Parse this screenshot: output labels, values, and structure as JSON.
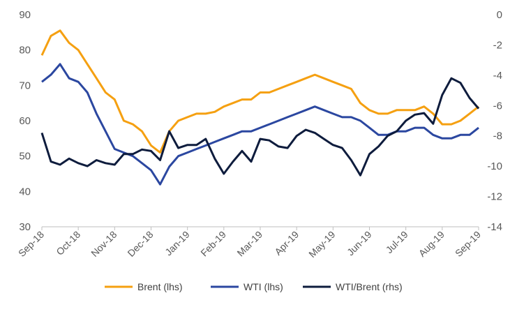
{
  "chart_data": {
    "type": "line",
    "title": "",
    "xlabel": "",
    "ylabel": "",
    "x_ticks": [
      "Sep-18",
      "Oct-18",
      "Nov-18",
      "Dec-18",
      "Jan-19",
      "Feb-19",
      "Mar-19",
      "Apr-19",
      "May-19",
      "Jun-19",
      "Jul-19",
      "Aug-19",
      "Sep-19"
    ],
    "ylim_left": [
      30,
      90
    ],
    "yticks_left": [
      "30",
      "40",
      "50",
      "60",
      "70",
      "80",
      "90"
    ],
    "ylim_right": [
      -14,
      0
    ],
    "yticks_right": [
      "-14",
      "-12",
      "-10",
      "-8",
      "-6",
      "-4",
      "-2",
      "0"
    ],
    "grid": false,
    "legend_position": "bottom",
    "series": [
      {
        "name": "Brent (lhs)",
        "axis": "left",
        "color": "#F5A011",
        "x": [
          0,
          0.25,
          0.5,
          0.75,
          1,
          1.25,
          1.5,
          1.75,
          2,
          2.25,
          2.5,
          2.75,
          3,
          3.25,
          3.5,
          3.75,
          4,
          4.25,
          4.5,
          4.75,
          5,
          5.25,
          5.5,
          5.75,
          6,
          6.25,
          6.5,
          6.75,
          7,
          7.25,
          7.5,
          7.75,
          8,
          8.25,
          8.5,
          8.75,
          9,
          9.25,
          9.5,
          9.75,
          10,
          10.25,
          10.5,
          10.75,
          11,
          11.25,
          11.5,
          11.75,
          12
        ],
        "values": [
          78.5,
          84,
          85.5,
          82,
          80,
          76,
          72,
          68,
          66,
          60,
          59,
          57,
          53,
          51,
          57,
          60,
          61,
          62,
          62,
          62.5,
          64,
          65,
          66,
          66,
          68,
          68,
          69,
          70,
          71,
          72,
          73,
          72,
          71,
          70,
          69,
          65,
          63,
          62,
          62,
          63,
          63,
          63,
          64,
          62,
          59,
          59,
          60,
          62,
          64
        ]
      },
      {
        "name": "WTI (lhs)",
        "axis": "left",
        "color": "#2B47A0",
        "x": [
          0,
          0.25,
          0.5,
          0.75,
          1,
          1.25,
          1.5,
          1.75,
          2,
          2.25,
          2.5,
          2.75,
          3,
          3.25,
          3.5,
          3.75,
          4,
          4.25,
          4.5,
          4.75,
          5,
          5.25,
          5.5,
          5.75,
          6,
          6.25,
          6.5,
          6.75,
          7,
          7.25,
          7.5,
          7.75,
          8,
          8.25,
          8.5,
          8.75,
          9,
          9.25,
          9.5,
          9.75,
          10,
          10.25,
          10.5,
          10.75,
          11,
          11.25,
          11.5,
          11.75,
          12
        ],
        "values": [
          71,
          73,
          76,
          72,
          71,
          68,
          62,
          57,
          52,
          51,
          50,
          48,
          46,
          42,
          47,
          50,
          51,
          52,
          53,
          54,
          55,
          56,
          57,
          57,
          58,
          59,
          60,
          61,
          62,
          63,
          64,
          63,
          62,
          61,
          61,
          60,
          58,
          56,
          56,
          57,
          57,
          58,
          58,
          56,
          55,
          55,
          56,
          56,
          58
        ]
      },
      {
        "name": "WTI/Brent (rhs)",
        "axis": "right",
        "color": "#0E1C3D",
        "x": [
          0,
          0.25,
          0.5,
          0.75,
          1,
          1.25,
          1.5,
          1.75,
          2,
          2.25,
          2.5,
          2.75,
          3,
          3.25,
          3.5,
          3.75,
          4,
          4.25,
          4.5,
          4.75,
          5,
          5.25,
          5.5,
          5.75,
          6,
          6.25,
          6.5,
          6.75,
          7,
          7.25,
          7.5,
          7.75,
          8,
          8.25,
          8.5,
          8.75,
          9,
          9.25,
          9.5,
          9.75,
          10,
          10.25,
          10.5,
          10.75,
          11,
          11.25,
          11.5,
          11.75,
          12
        ],
        "values": [
          -7.8,
          -9.7,
          -9.9,
          -9.5,
          -9.8,
          -10,
          -9.6,
          -9.8,
          -9.9,
          -9.2,
          -9.2,
          -8.9,
          -9,
          -9.6,
          -7.7,
          -8.8,
          -8.6,
          -8.6,
          -8.2,
          -9.5,
          -10.5,
          -9.7,
          -9,
          -9.7,
          -8.2,
          -8.3,
          -8.7,
          -8.8,
          -8,
          -7.6,
          -7.8,
          -8.2,
          -8.6,
          -8.8,
          -9.6,
          -10.6,
          -9.2,
          -8.7,
          -8,
          -7.7,
          -7,
          -6.6,
          -6.5,
          -7.2,
          -5.3,
          -4.2,
          -4.5,
          -5.5,
          -6.2
        ]
      }
    ]
  }
}
